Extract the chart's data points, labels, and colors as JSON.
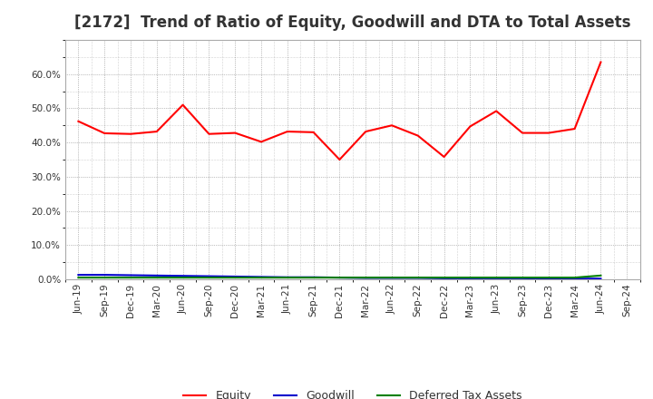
{
  "title": "[2172]  Trend of Ratio of Equity, Goodwill and DTA to Total Assets",
  "x_labels": [
    "Jun-19",
    "Sep-19",
    "Dec-19",
    "Mar-20",
    "Jun-20",
    "Sep-20",
    "Dec-20",
    "Mar-21",
    "Jun-21",
    "Sep-21",
    "Dec-21",
    "Mar-22",
    "Jun-22",
    "Sep-22",
    "Dec-22",
    "Mar-23",
    "Jun-23",
    "Sep-23",
    "Dec-23",
    "Mar-24",
    "Jun-24",
    "Sep-24"
  ],
  "equity": [
    0.462,
    0.427,
    0.425,
    0.432,
    0.51,
    0.425,
    0.428,
    0.402,
    0.432,
    0.43,
    0.35,
    0.432,
    0.45,
    0.42,
    0.358,
    0.447,
    0.492,
    0.428,
    0.428,
    0.44,
    0.635,
    null
  ],
  "goodwill": [
    0.013,
    0.013,
    0.012,
    0.011,
    0.01,
    0.009,
    0.008,
    0.007,
    0.006,
    0.006,
    0.005,
    0.004,
    0.004,
    0.004,
    0.003,
    0.003,
    0.003,
    0.003,
    0.002,
    0.002,
    0.002,
    null
  ],
  "dta": [
    0.005,
    0.005,
    0.005,
    0.005,
    0.005,
    0.005,
    0.005,
    0.005,
    0.005,
    0.005,
    0.005,
    0.005,
    0.005,
    0.005,
    0.005,
    0.005,
    0.005,
    0.005,
    0.005,
    0.005,
    0.011,
    null
  ],
  "equity_color": "#FF0000",
  "goodwill_color": "#0000CC",
  "dta_color": "#008000",
  "ylim": [
    0.0,
    0.7
  ],
  "yticks": [
    0.0,
    0.1,
    0.2,
    0.3,
    0.4,
    0.5,
    0.6
  ],
  "background_color": "#FFFFFF",
  "plot_bg_color": "#FFFFFF",
  "grid_color": "#555555",
  "title_fontsize": 12,
  "legend_labels": [
    "Equity",
    "Goodwill",
    "Deferred Tax Assets"
  ]
}
